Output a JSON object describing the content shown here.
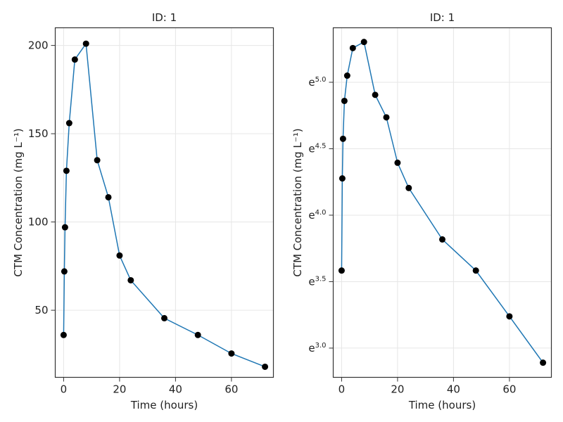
{
  "chart_data": [
    {
      "type": "line",
      "title": "ID: 1",
      "xlabel": "Time (hours)",
      "ylabel": "CTM Concentration (mg L⁻¹)",
      "yscale": "linear",
      "xlim": [
        -3,
        75
      ],
      "ylim": [
        12,
        210
      ],
      "xticks": [
        0,
        20,
        40,
        60
      ],
      "xtick_labels": [
        "0",
        "20",
        "40",
        "60"
      ],
      "yticks": [
        50,
        100,
        150,
        200
      ],
      "ytick_labels": [
        "50",
        "100",
        "150",
        "200"
      ],
      "grid": true,
      "line_color": "#1f77b4",
      "marker_color": "#000000",
      "x": [
        0,
        0.25,
        0.5,
        1,
        2,
        4,
        8,
        12,
        16,
        20,
        24,
        36,
        48,
        60,
        72
      ],
      "y": [
        36,
        72,
        97,
        129,
        156,
        192,
        201,
        135,
        114,
        81,
        67,
        45.5,
        36,
        25.5,
        18
      ]
    },
    {
      "type": "line",
      "title": "ID: 1",
      "xlabel": "Time (hours)",
      "ylabel": "CTM Concentration (mg L⁻¹)",
      "yscale": "log (natural)",
      "xlim": [
        -3,
        75
      ],
      "ylim_exponent": [
        2.78,
        5.41
      ],
      "xticks": [
        0,
        20,
        40,
        60
      ],
      "xtick_labels": [
        "0",
        "20",
        "40",
        "60"
      ],
      "ytick_exponents": [
        3.0,
        3.5,
        4.0,
        4.5,
        5.0
      ],
      "ytick_base": "e",
      "ytick_sup": [
        "3.0",
        "3.5",
        "4.0",
        "4.5",
        "5.0"
      ],
      "grid": true,
      "line_color": "#1f77b4",
      "marker_color": "#000000",
      "x": [
        0,
        0.25,
        0.5,
        1,
        2,
        4,
        8,
        12,
        16,
        20,
        24,
        36,
        48,
        60,
        72
      ],
      "y": [
        36,
        72,
        97,
        129,
        156,
        192,
        201,
        135,
        114,
        81,
        67,
        45.5,
        36,
        25.5,
        18
      ]
    }
  ]
}
